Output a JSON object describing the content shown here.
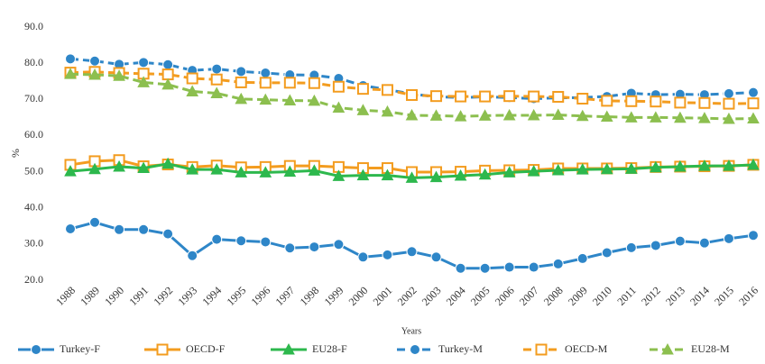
{
  "chart_data": {
    "type": "line",
    "x_label": "Years",
    "y_label": "%",
    "categories": [
      "1988",
      "1989",
      "1990",
      "1991",
      "1992",
      "1993",
      "1994",
      "1995",
      "1996",
      "1997",
      "1998",
      "1999",
      "2000",
      "2001",
      "2002",
      "2003",
      "2004",
      "2005",
      "2006",
      "2007",
      "2008",
      "2009",
      "2010",
      "2011",
      "2012",
      "2013",
      "2014",
      "2015",
      "2016"
    ],
    "ylim": [
      20,
      90
    ],
    "yticks": [
      {
        "value": 20,
        "label": "20.0"
      },
      {
        "value": 30,
        "label": "30.0"
      },
      {
        "value": 40,
        "label": "40.0"
      },
      {
        "value": 50,
        "label": "50.0"
      },
      {
        "value": 60,
        "label": "60.0"
      },
      {
        "value": 70,
        "label": "70.0"
      },
      {
        "value": 80,
        "label": "80.0"
      },
      {
        "value": 90,
        "label": "90.0"
      }
    ],
    "grid": false,
    "legend": "bottom",
    "series": [
      {
        "name": "Turkey-F",
        "color": "#2e86c8",
        "marker": "circle",
        "dashed": false,
        "values": [
          34.2,
          36.0,
          34.0,
          34.0,
          32.8,
          26.8,
          31.3,
          30.9,
          30.6,
          28.9,
          29.2,
          29.9,
          26.4,
          27.0,
          27.9,
          26.4,
          23.3,
          23.3,
          23.6,
          23.6,
          24.5,
          26.0,
          27.6,
          29.0,
          29.6,
          30.8,
          30.3,
          31.5,
          32.4
        ]
      },
      {
        "name": "OECD-F",
        "color": "#f39c1f",
        "marker": "square",
        "dashed": false,
        "values": [
          51.9,
          52.9,
          53.2,
          51.5,
          52.0,
          51.3,
          51.7,
          51.2,
          51.3,
          51.6,
          51.6,
          51.3,
          51.0,
          51.0,
          49.9,
          49.9,
          50.0,
          50.3,
          50.4,
          50.5,
          50.9,
          50.9,
          50.9,
          51.0,
          51.3,
          51.4,
          51.5,
          51.6,
          51.9
        ]
      },
      {
        "name": "EU28-F",
        "color": "#2db84d",
        "marker": "triangle",
        "dashed": false,
        "values": [
          50.1,
          50.7,
          51.4,
          51.0,
          52.2,
          50.6,
          50.6,
          49.8,
          49.8,
          50.0,
          50.3,
          48.8,
          49.0,
          49.0,
          48.3,
          48.5,
          48.9,
          49.2,
          49.8,
          50.1,
          50.4,
          50.6,
          50.7,
          50.8,
          51.2,
          51.4,
          51.6,
          51.6,
          51.9
        ]
      },
      {
        "name": "Turkey-M",
        "color": "#2e86c8",
        "marker": "circle",
        "dashed": true,
        "values": [
          81.2,
          80.6,
          79.7,
          80.2,
          79.6,
          78.0,
          78.4,
          77.7,
          77.3,
          76.8,
          76.7,
          75.8,
          73.8,
          72.7,
          71.5,
          70.7,
          70.5,
          70.7,
          70.5,
          70.2,
          70.4,
          70.5,
          70.8,
          71.7,
          71.3,
          71.4,
          71.3,
          71.6,
          71.9
        ]
      },
      {
        "name": "OECD-M",
        "color": "#f39c1f",
        "marker": "square",
        "dashed": true,
        "values": [
          77.4,
          77.6,
          77.3,
          77.1,
          76.9,
          75.8,
          75.5,
          74.7,
          74.6,
          74.6,
          74.5,
          73.5,
          72.9,
          72.6,
          71.2,
          70.9,
          70.8,
          70.8,
          70.9,
          70.8,
          70.7,
          70.2,
          69.6,
          69.5,
          69.4,
          69.1,
          69.0,
          68.8,
          68.9
        ]
      },
      {
        "name": "EU28-M",
        "color": "#8cbf4f",
        "marker": "triangle",
        "dashed": true,
        "values": [
          77.0,
          76.8,
          76.5,
          74.7,
          74.1,
          72.2,
          71.7,
          70.1,
          69.9,
          69.7,
          69.6,
          67.7,
          67.0,
          66.6,
          65.6,
          65.5,
          65.3,
          65.5,
          65.6,
          65.6,
          65.7,
          65.4,
          65.2,
          65.0,
          65.0,
          64.9,
          64.8,
          64.6,
          64.7
        ]
      }
    ]
  }
}
